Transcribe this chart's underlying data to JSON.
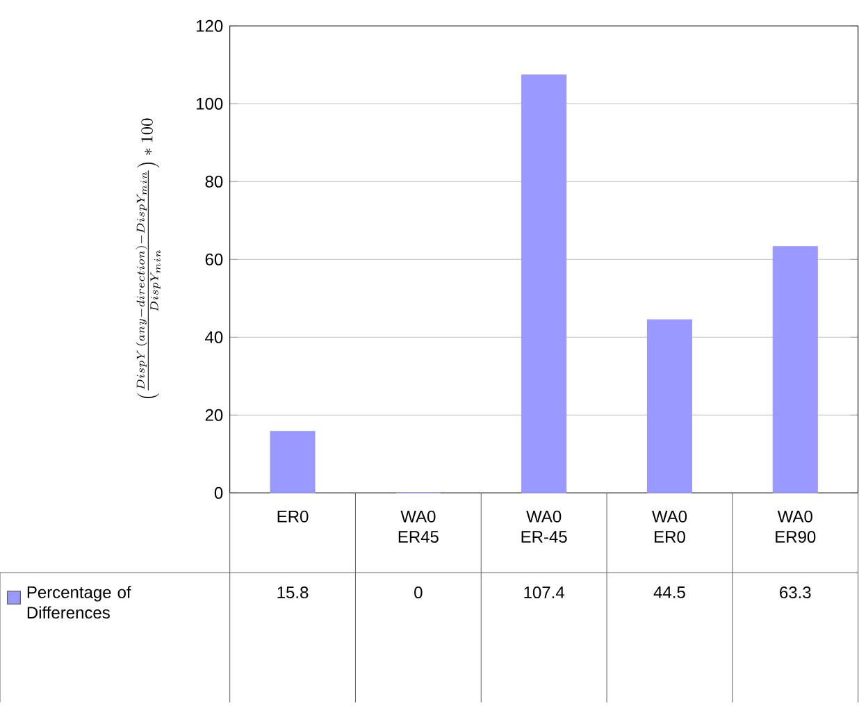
{
  "chart_data": {
    "type": "bar",
    "ylabel": "\\left(\\frac{DispY\\,(any-direction)-DispY_{min}}{DispY_{min}}\\right)*100",
    "categories": [
      "ER0",
      "WA0 ER45",
      "WA0 ER-45",
      "WA0 ER0",
      "WA0 ER90"
    ],
    "series": [
      {
        "name": "Percentage of Differences",
        "color": "#9999ff",
        "values": [
          15.8,
          0,
          107.4,
          44.5,
          63.3
        ]
      }
    ],
    "ylim": [
      0,
      120
    ],
    "yticks": [
      0,
      20,
      40,
      60,
      80,
      100,
      120
    ],
    "grid": "y",
    "data_labels": true,
    "legend": "bottom left"
  }
}
